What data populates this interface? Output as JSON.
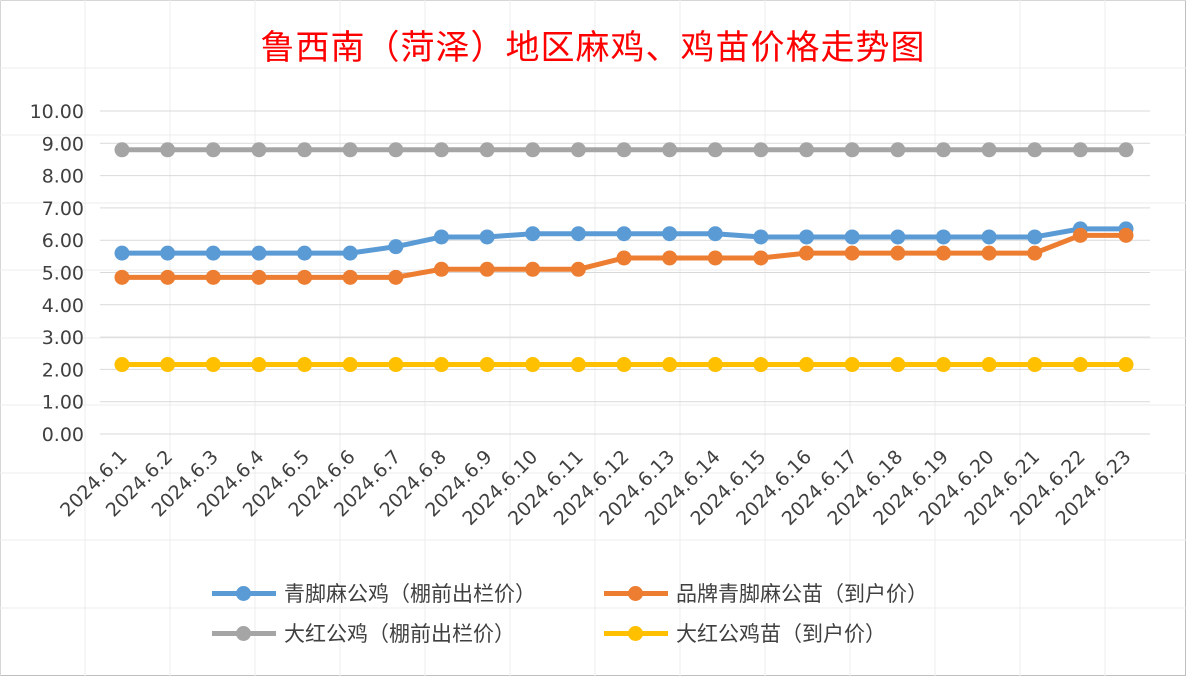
{
  "chart_data": {
    "type": "line",
    "title": "鲁西南（菏泽）地区麻鸡、鸡苗价格走势图",
    "xlabel": "",
    "ylabel": "",
    "ylim": [
      0,
      10
    ],
    "yticks": [
      "0.00",
      "1.00",
      "2.00",
      "3.00",
      "4.00",
      "5.00",
      "6.00",
      "7.00",
      "8.00",
      "9.00",
      "10.00"
    ],
    "grid": true,
    "legend_position": "bottom",
    "categories": [
      "2024.6.1",
      "2024.6.2",
      "2024.6.3",
      "2024.6.4",
      "2024.6.5",
      "2024.6.6",
      "2024.6.7",
      "2024.6.8",
      "2024.6.9",
      "2024.6.10",
      "2024.6.11",
      "2024.6.12",
      "2024.6.13",
      "2024.6.14",
      "2024.6.15",
      "2024.6.16",
      "2024.6.17",
      "2024.6.18",
      "2024.6.19",
      "2024.6.20",
      "2024.6.21",
      "2024.6.22",
      "2024.6.23"
    ],
    "series": [
      {
        "name": "青脚麻公鸡（棚前出栏价）",
        "color": "#5b9bd5",
        "values": [
          5.6,
          5.6,
          5.6,
          5.6,
          5.6,
          5.6,
          5.8,
          6.1,
          6.1,
          6.2,
          6.2,
          6.2,
          6.2,
          6.2,
          6.1,
          6.1,
          6.1,
          6.1,
          6.1,
          6.1,
          6.1,
          6.35,
          6.35
        ]
      },
      {
        "name": "品牌青脚麻公苗（到户价）",
        "color": "#ed7d31",
        "values": [
          4.85,
          4.85,
          4.85,
          4.85,
          4.85,
          4.85,
          4.85,
          5.1,
          5.1,
          5.1,
          5.1,
          5.45,
          5.45,
          5.45,
          5.45,
          5.6,
          5.6,
          5.6,
          5.6,
          5.6,
          5.6,
          6.15,
          6.15
        ]
      },
      {
        "name": "大红公鸡（棚前出栏价）",
        "color": "#a5a5a5",
        "values": [
          8.8,
          8.8,
          8.8,
          8.8,
          8.8,
          8.8,
          8.8,
          8.8,
          8.8,
          8.8,
          8.8,
          8.8,
          8.8,
          8.8,
          8.8,
          8.8,
          8.8,
          8.8,
          8.8,
          8.8,
          8.8,
          8.8,
          8.8
        ]
      },
      {
        "name": "大红公鸡苗（到户价）",
        "color": "#ffc000",
        "values": [
          2.15,
          2.15,
          2.15,
          2.15,
          2.15,
          2.15,
          2.15,
          2.15,
          2.15,
          2.15,
          2.15,
          2.15,
          2.15,
          2.15,
          2.15,
          2.15,
          2.15,
          2.15,
          2.15,
          2.15,
          2.15,
          2.15,
          2.15
        ]
      }
    ]
  }
}
